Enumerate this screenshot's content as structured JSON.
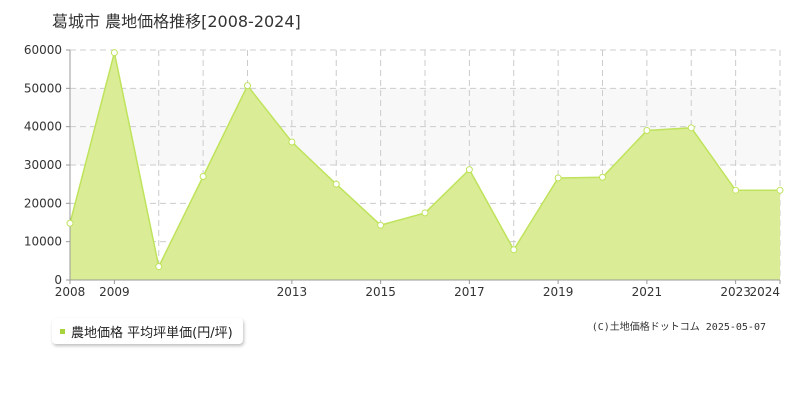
{
  "chart_data": {
    "type": "area",
    "title": "葛城市  農地価格推移[2008-2024]",
    "x": [
      2008,
      2009,
      2010,
      2011,
      2012,
      2013,
      2014,
      2015,
      2016,
      2017,
      2018,
      2019,
      2020,
      2021,
      2022,
      2023,
      2024
    ],
    "x_tick_labels": [
      "2008",
      "2009",
      "2013",
      "2015",
      "2017",
      "2019",
      "2021",
      "2023",
      "2024"
    ],
    "x_tick_years": [
      2008,
      2009,
      2013,
      2015,
      2017,
      2019,
      2021,
      2023,
      2024
    ],
    "y_tick_labels": [
      "0",
      "10000",
      "20000",
      "30000",
      "40000",
      "50000",
      "60000"
    ],
    "y_ticks": [
      0,
      10000,
      20000,
      30000,
      40000,
      50000,
      60000
    ],
    "ylim": [
      0,
      60000
    ],
    "xlim": [
      2008,
      2024
    ],
    "series": [
      {
        "name": "農地価格 平均坪単価(円/坪)",
        "values": [
          14800,
          59300,
          3500,
          27000,
          50700,
          36000,
          25000,
          14300,
          17500,
          28800,
          7900,
          26600,
          26800,
          39000,
          39700,
          23400,
          23400
        ]
      }
    ],
    "band": [
      30000,
      50000
    ],
    "grid": true,
    "legend_position": "bottom-left",
    "colors": {
      "line": "#bfe35c",
      "fill": "#daed96",
      "band": "#f8f8f8",
      "grid": "#cccccc",
      "axis": "#999999"
    }
  },
  "legend": {
    "label": "農地価格 平均坪単価(円/坪)",
    "swatch_color": "#a8d43b"
  },
  "copyright": "(C)土地価格ドットコム 2025-05-07"
}
